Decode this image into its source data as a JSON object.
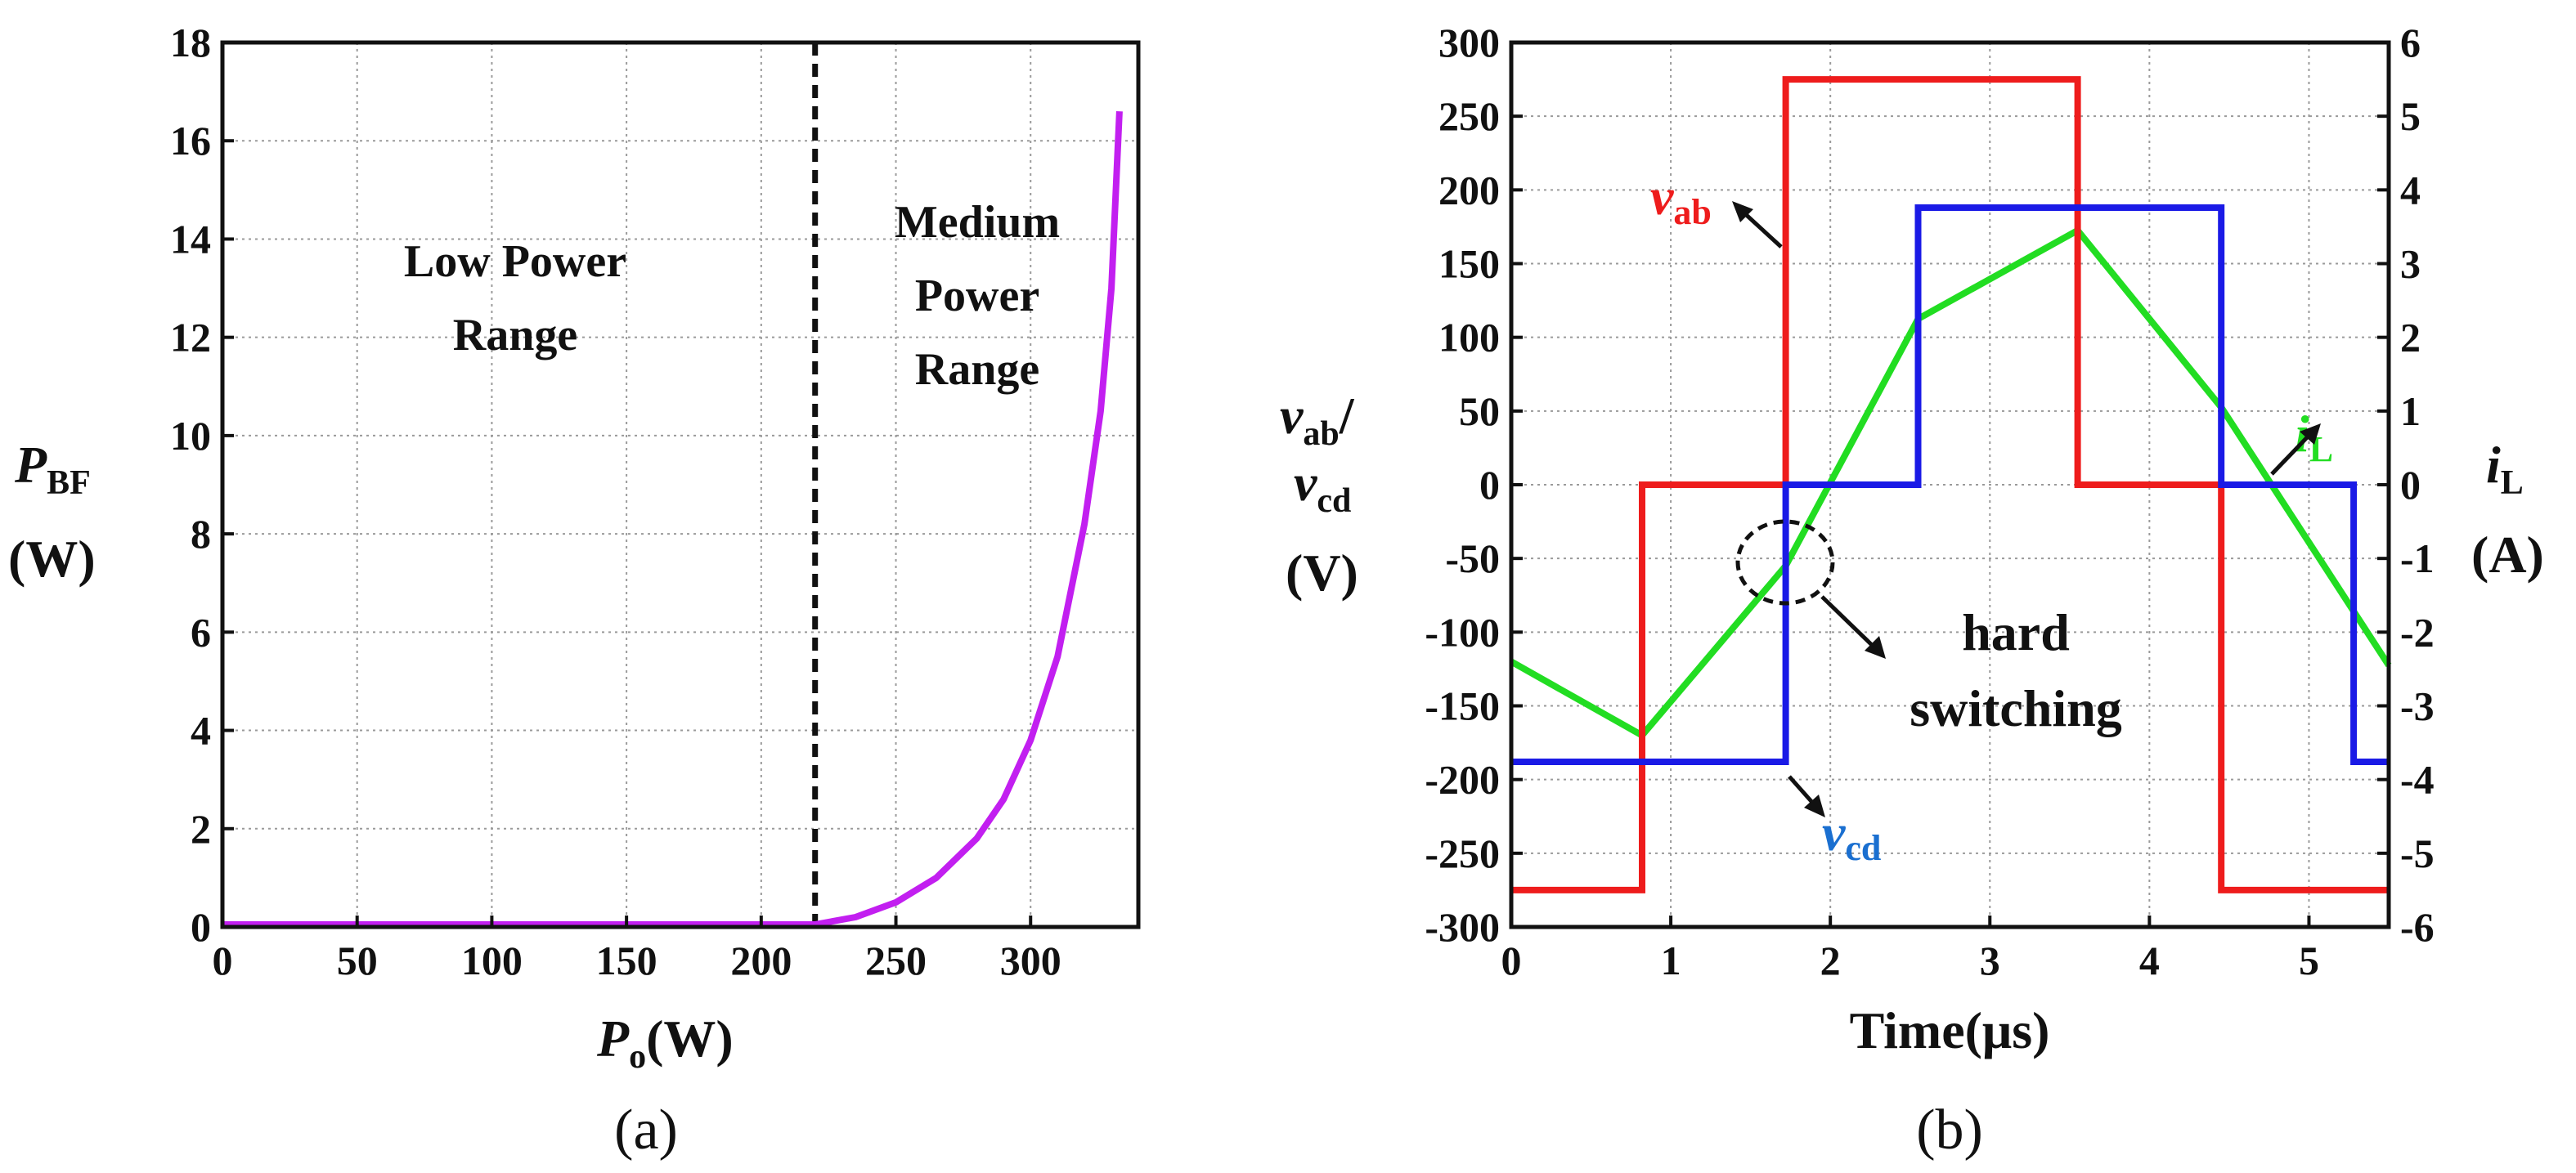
{
  "figure": {
    "caption_a": "(a)",
    "caption_b": "(b)"
  },
  "chart_data": [
    {
      "type": "line",
      "panel": "a",
      "title": "",
      "xlabel": {
        "main": "P",
        "sub": "o",
        "unit": "(W)"
      },
      "ylabel": {
        "main": "P",
        "sub": "BF",
        "unit": "(W)"
      },
      "xlim": [
        0,
        340
      ],
      "ylim": [
        0,
        18
      ],
      "xticks": [
        0,
        50,
        100,
        150,
        200,
        250,
        300
      ],
      "yticks": [
        0,
        2,
        4,
        6,
        8,
        10,
        12,
        14,
        16,
        18
      ],
      "grid": true,
      "divider_x": 220,
      "annotations": {
        "low_line1": "Low Power",
        "low_line2": "Range",
        "med_line1": "Medium",
        "med_line2": "Power",
        "med_line3": "Range"
      },
      "series": [
        {
          "name": "P_BF",
          "color": "#c21ff0",
          "x": [
            0,
            50,
            100,
            150,
            200,
            220,
            235,
            250,
            265,
            280,
            290,
            300,
            310,
            320,
            326,
            330,
            333
          ],
          "y": [
            0.05,
            0.05,
            0.05,
            0.05,
            0.05,
            0.05,
            0.2,
            0.5,
            1.0,
            1.8,
            2.6,
            3.8,
            5.5,
            8.2,
            10.5,
            13.0,
            16.6
          ]
        }
      ]
    },
    {
      "type": "line",
      "panel": "b",
      "title": "",
      "xlabel": "Time(μs)",
      "ylabel_left": {
        "v1": "v",
        "s1": "ab",
        "slash": "/",
        "v2": "v",
        "s2": "cd",
        "unit": "(V)"
      },
      "ylabel_right": {
        "main": "i",
        "sub": "L",
        "unit": "(A)"
      },
      "xlim": [
        0,
        5.5
      ],
      "ylim_left": [
        -300,
        300
      ],
      "ylim_right": [
        -6,
        6
      ],
      "xticks": [
        0,
        1,
        2,
        3,
        4,
        5
      ],
      "yticks_left": [
        -300,
        -250,
        -200,
        -150,
        -100,
        -50,
        0,
        50,
        100,
        150,
        200,
        250,
        300
      ],
      "yticks_right": [
        -6,
        -5,
        -4,
        -3,
        -2,
        -1,
        0,
        1,
        2,
        3,
        4,
        5,
        6
      ],
      "grid": true,
      "annotations": {
        "hard_line1": "hard",
        "hard_line2": "switching",
        "vab_main": "v",
        "vab_sub": "ab",
        "vcd_main": "v",
        "vcd_sub": "cd",
        "iL_main": "i",
        "iL_sub": "L"
      },
      "series": [
        {
          "name": "v_ab",
          "axis": "left",
          "color": "#ee1c1c",
          "x": [
            0,
            0.82,
            0.82,
            1.72,
            1.72,
            3.55,
            3.55,
            4.45,
            4.45,
            5.5
          ],
          "y": [
            -275,
            -275,
            0,
            0,
            275,
            275,
            0,
            0,
            -275,
            -275
          ]
        },
        {
          "name": "v_cd",
          "axis": "left",
          "color": "#1a1ae6",
          "x": [
            0,
            1.72,
            1.72,
            2.55,
            2.55,
            4.45,
            4.45,
            5.28,
            5.28,
            5.5
          ],
          "y": [
            -188,
            -188,
            0,
            0,
            188,
            188,
            0,
            0,
            -188,
            -188
          ]
        },
        {
          "name": "i_L",
          "axis": "right",
          "color": "#22dd22",
          "x": [
            0,
            0.82,
            1.72,
            2.55,
            3.55,
            4.45,
            5.5
          ],
          "y": [
            -2.4,
            -3.4,
            -1.1,
            2.25,
            3.45,
            1.05,
            -2.45
          ]
        }
      ]
    }
  ]
}
